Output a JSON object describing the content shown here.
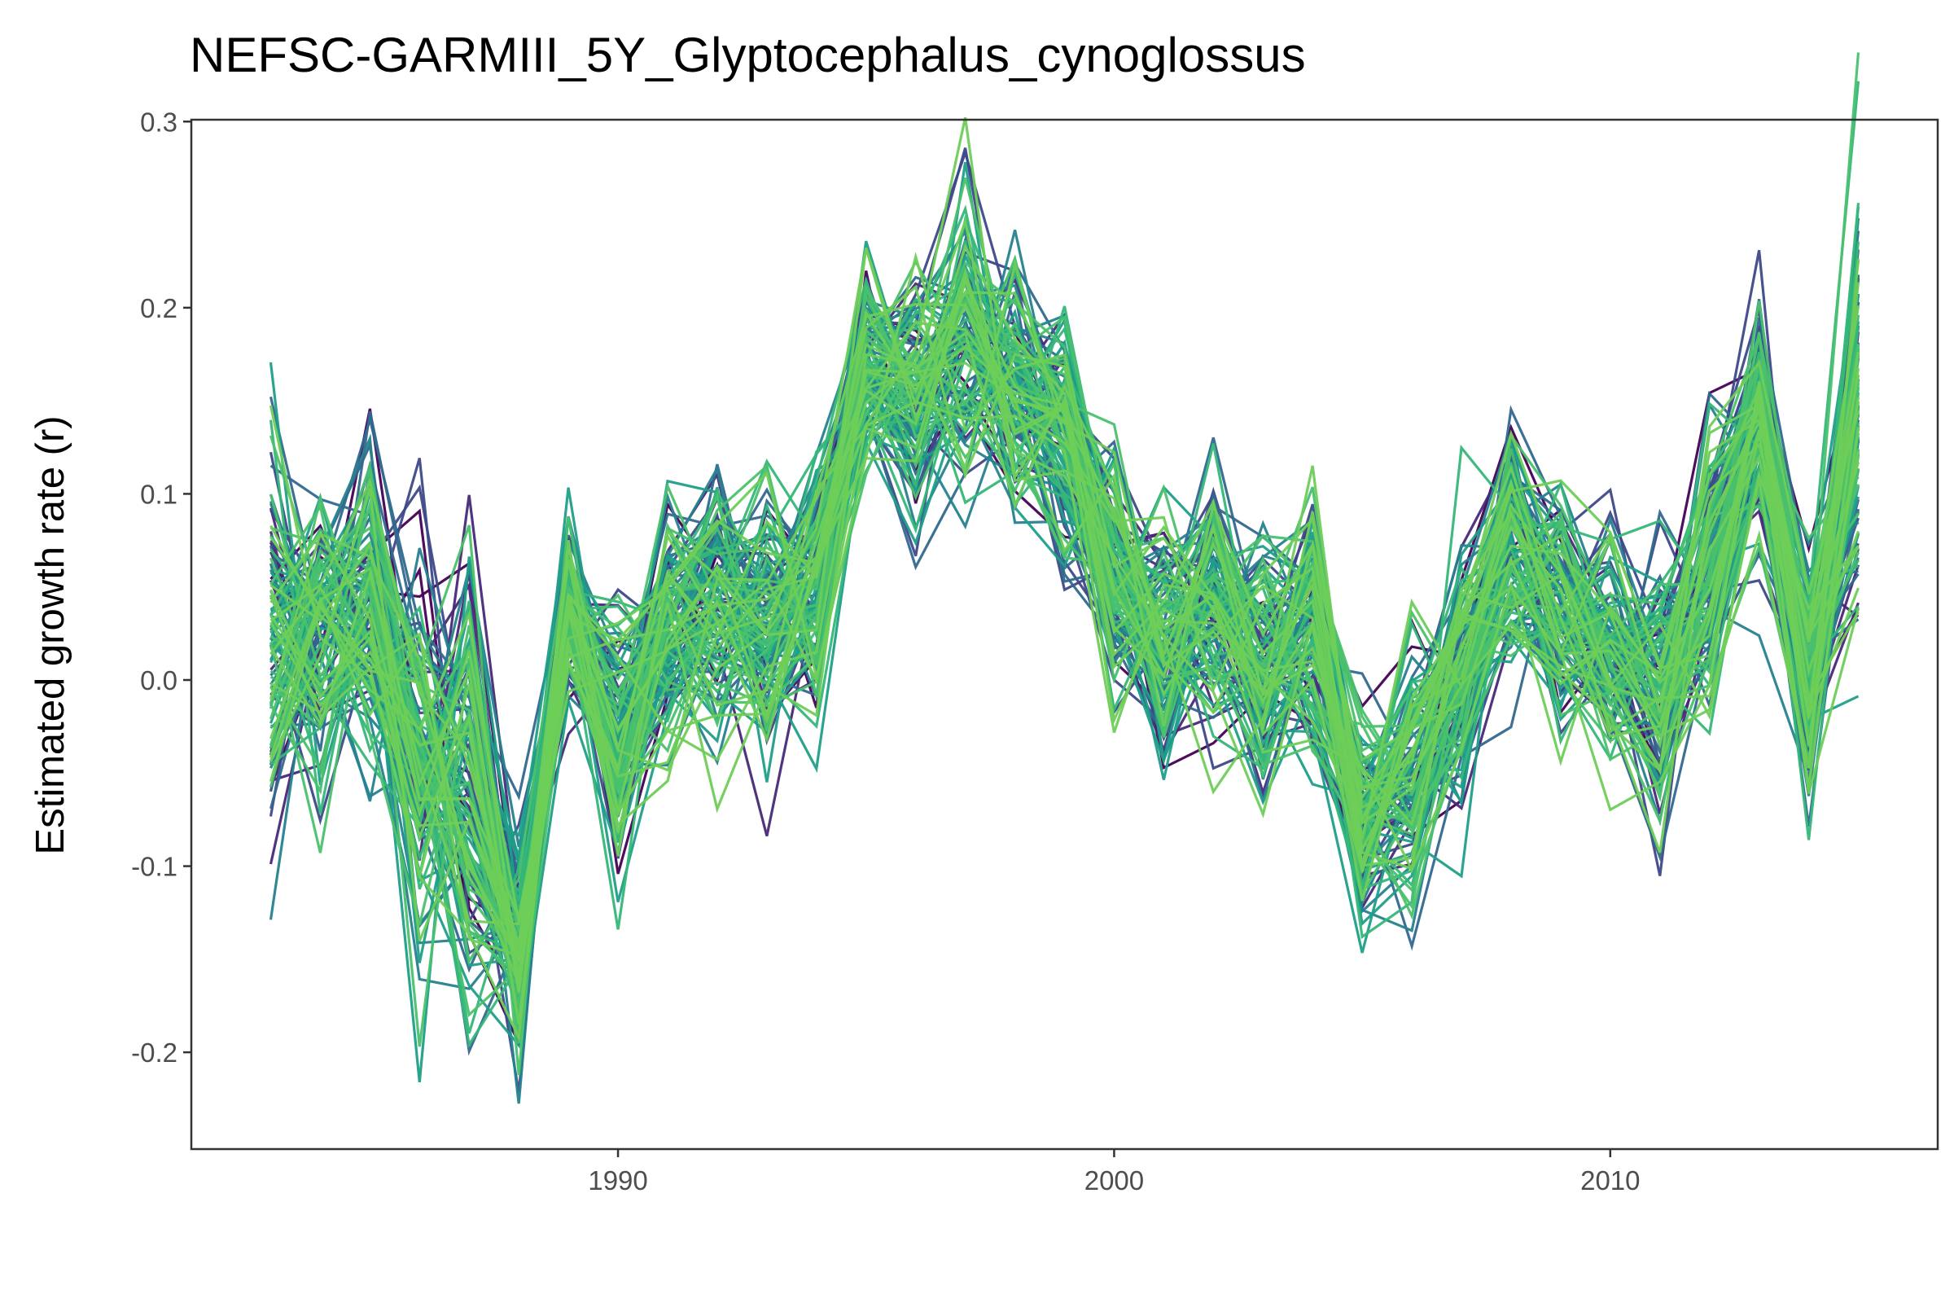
{
  "chart_data": {
    "type": "line",
    "title": "NEFSC-GARMIII_5Y_Glyptocephalus_cynoglossus",
    "xlabel": "",
    "ylabel": "Estimated growth rate (r)",
    "x_ticks": [
      1990,
      2000,
      2010
    ],
    "x_tick_labels": [
      "1990",
      "2000",
      "2010"
    ],
    "y_ticks": [
      -0.2,
      -0.1,
      0.0,
      0.1,
      0.2,
      0.3
    ],
    "y_tick_labels": [
      "-0.2",
      "-0.1",
      "0.0",
      "0.1",
      "0.2",
      "0.3"
    ],
    "xlim": [
      1981.4,
      2016.6
    ],
    "ylim": [
      -0.252,
      0.301
    ],
    "grid": false,
    "legend": "none",
    "n_series_drawn": 120,
    "palette": [
      "#440154",
      "#482878",
      "#3e4989",
      "#31688e",
      "#26828e",
      "#1f9e89",
      "#35b779",
      "#4ac16d",
      "#6ece58"
    ],
    "x": [
      1983,
      1984,
      1985,
      1986,
      1987,
      1988,
      1989,
      1990,
      1991,
      1992,
      1993,
      1994,
      1995,
      1996,
      1997,
      1998,
      1999,
      2000,
      2001,
      2002,
      2003,
      2004,
      2005,
      2006,
      2007,
      2008,
      2009,
      2010,
      2011,
      2012,
      2013,
      2014,
      2015
    ],
    "series_center": [
      0.015,
      0.03,
      0.045,
      -0.03,
      -0.06,
      -0.15,
      0.035,
      -0.03,
      0.02,
      0.04,
      0.03,
      0.05,
      0.17,
      0.15,
      0.18,
      0.15,
      0.135,
      0.06,
      0.02,
      0.04,
      0.01,
      0.025,
      -0.075,
      -0.05,
      0.0,
      0.08,
      0.04,
      0.02,
      -0.01,
      0.05,
      0.14,
      0.0,
      0.14
    ],
    "series_spread": [
      0.055,
      0.04,
      0.045,
      0.055,
      0.06,
      0.03,
      0.025,
      0.035,
      0.035,
      0.035,
      0.035,
      0.035,
      0.025,
      0.035,
      0.045,
      0.035,
      0.035,
      0.03,
      0.035,
      0.035,
      0.035,
      0.035,
      0.03,
      0.035,
      0.035,
      0.035,
      0.035,
      0.035,
      0.035,
      0.035,
      0.035,
      0.035,
      0.055
    ]
  }
}
